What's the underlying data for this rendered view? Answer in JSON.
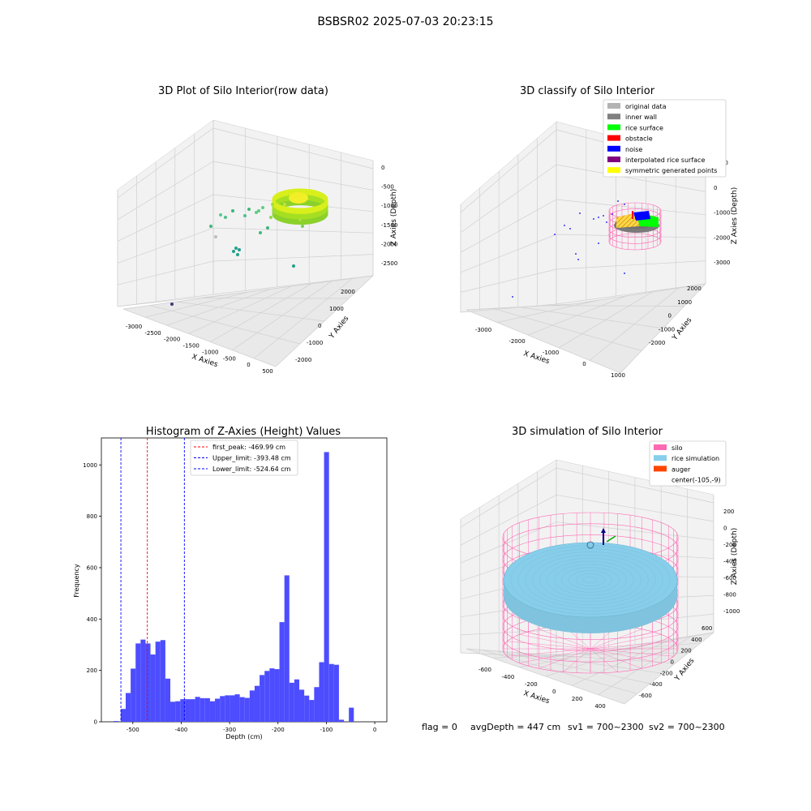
{
  "suptitle": "BSBSR02 2025-07-03 20:23:15",
  "footer": {
    "flag": "flag = 0",
    "avg": "avgDepth = 447 cm",
    "sv1": "sv1 = 700~2300",
    "sv2": "sv2 = 700~2300"
  },
  "chart_data": [
    {
      "type": "scatter",
      "projection": "3d",
      "title": "3D Plot of Silo Interior(row data)",
      "xlabel": "X Axies",
      "ylabel": "Y Axies",
      "zlabel": "Z Axies (Depth)",
      "x_ticks": [
        "-3000",
        "-2500",
        "-2000",
        "-1500",
        "-1000",
        "-500",
        "0",
        "500"
      ],
      "y_ticks": [
        "-2000",
        "-1000",
        "0",
        "1000",
        "2000"
      ],
      "z_ticks": [
        "0",
        "-500",
        "-1000",
        "-1500",
        "-2000",
        "-2500"
      ],
      "colormap": "viridis",
      "ring": {
        "cx": -100,
        "cy": 0,
        "radius": 650,
        "z_top": -470,
        "z_bottom": -650,
        "color": "#9be02a"
      },
      "points": [
        {
          "x": -2700,
          "y": -1500,
          "z": -2100
        },
        {
          "x": -1400,
          "y": 200,
          "z": -1200
        },
        {
          "x": -1300,
          "y": -300,
          "z": -1350
        },
        {
          "x": -1150,
          "y": 400,
          "z": -1250
        },
        {
          "x": -900,
          "y": -200,
          "z": -1300
        },
        {
          "x": -900,
          "y": 100,
          "z": -1400
        },
        {
          "x": -800,
          "y": 500,
          "z": -1200
        },
        {
          "x": -700,
          "y": -600,
          "z": -1500
        },
        {
          "x": -600,
          "y": 300,
          "z": -1150
        },
        {
          "x": -500,
          "y": -200,
          "z": -1450
        },
        {
          "x": -400,
          "y": 600,
          "z": -1100
        },
        {
          "x": -300,
          "y": -800,
          "z": -1500
        },
        {
          "x": -200,
          "y": -500,
          "z": -1550
        },
        {
          "x": -100,
          "y": 100,
          "z": -1300
        },
        {
          "x": 0,
          "y": -900,
          "z": -1350
        },
        {
          "x": 100,
          "y": -300,
          "z": -1000
        },
        {
          "x": 200,
          "y": 700,
          "z": -900
        },
        {
          "x": 300,
          "y": -600,
          "z": -1300
        },
        {
          "x": -1100,
          "y": 900,
          "z": -1800
        },
        {
          "x": -1000,
          "y": 1000,
          "z": -1900
        },
        {
          "x": -950,
          "y": 800,
          "z": -1850
        },
        {
          "x": -600,
          "y": 1200,
          "z": -1700
        }
      ]
    },
    {
      "type": "scatter",
      "projection": "3d",
      "title": "3D classify of Silo Interior",
      "xlabel": "X Axies",
      "ylabel": "Y Axies",
      "zlabel": "Z Axies (Depth)",
      "x_ticks": [
        "-3000",
        "-2000",
        "-1000",
        "0",
        "1000"
      ],
      "y_ticks": [
        "-2000",
        "-1000",
        "0",
        "1000",
        "2000"
      ],
      "z_ticks": [
        "1000",
        "0",
        "-1000",
        "-2000",
        "-3000"
      ],
      "legend_position": "top-right",
      "legend": [
        {
          "label": "original data",
          "color": "#b3b3b3"
        },
        {
          "label": "inner wall",
          "color": "#808080"
        },
        {
          "label": "rice surface",
          "color": "#00ff00"
        },
        {
          "label": "obstacle",
          "color": "#ff0000"
        },
        {
          "label": "noise",
          "color": "#0000ff"
        },
        {
          "label": "interpolated rice surface",
          "color": "#800080"
        },
        {
          "label": "symmetric generated points",
          "color": "#ffff00"
        }
      ]
    },
    {
      "type": "bar",
      "title": "Histogram of Z-Axies (Height) Values",
      "xlabel": "Depth (cm)",
      "ylabel": "Frequency",
      "xlim": [
        -565,
        25
      ],
      "ylim": [
        0,
        1105
      ],
      "x_ticks": [
        -500,
        -400,
        -300,
        -200,
        -100,
        0
      ],
      "y_ticks": [
        0,
        200,
        400,
        600,
        800,
        1000
      ],
      "bar_color": "#4d4dff",
      "bin_start": -525,
      "bin_width": 10.25,
      "values": [
        50,
        112,
        207,
        305,
        320,
        305,
        262,
        312,
        318,
        168,
        78,
        80,
        88,
        88,
        88,
        97,
        92,
        92,
        80,
        90,
        100,
        103,
        103,
        107,
        96,
        93,
        122,
        140,
        182,
        198,
        208,
        205,
        388,
        570,
        152,
        165,
        125,
        102,
        85,
        135,
        232,
        1050,
        225,
        222,
        8,
        0,
        55
      ],
      "outlier_bar": {
        "x": -540,
        "value": 3
      },
      "lines": [
        {
          "label": "first_peak: -469.99 cm",
          "x": -469.99,
          "color": "#ff0000"
        },
        {
          "label": "Upper_limit: -393.48 cm",
          "x": -393.48,
          "color": "#0000ff"
        },
        {
          "label": "Lower_limit: -524.64 cm",
          "x": -524.64,
          "color": "#0000ff"
        }
      ]
    },
    {
      "type": "surface",
      "projection": "3d",
      "title": "3D simulation of Silo Interior",
      "xlabel": "X Axies",
      "ylabel": "Y Axies",
      "zlabel": "Z Axies (Depth)",
      "x_ticks": [
        "-600",
        "-400",
        "-200",
        "0",
        "200",
        "400"
      ],
      "y_ticks": [
        "-600",
        "-400",
        "-200",
        "0",
        "200",
        "400",
        "600"
      ],
      "z_ticks": [
        "200",
        "0",
        "-200",
        "-400",
        "-600",
        "-800",
        "-1000"
      ],
      "legend_position": "top-right",
      "legend": [
        {
          "label": "silo",
          "color": "#ff69b4"
        },
        {
          "label": "rice simulation",
          "color": "#87ceeb"
        },
        {
          "label": "auger",
          "color": "#ff4500"
        },
        {
          "label": "center(-105,-9)",
          "color": ""
        }
      ]
    }
  ]
}
